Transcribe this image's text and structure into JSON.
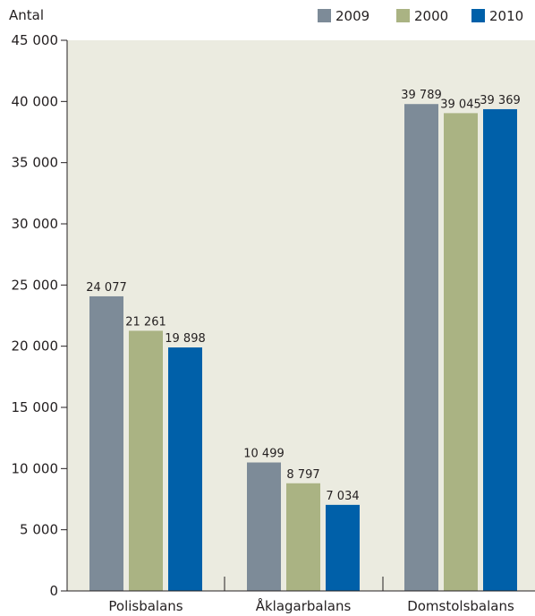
{
  "chart_data": {
    "type": "bar",
    "title": "",
    "xlabel": "",
    "ylabel": "Antal",
    "ylim": [
      0,
      45000
    ],
    "yticks": [
      0,
      5000,
      10000,
      15000,
      20000,
      25000,
      30000,
      35000,
      40000,
      45000
    ],
    "ytick_labels": [
      "0",
      "5 000",
      "10 000",
      "15 000",
      "20 000",
      "25 000",
      "30 000",
      "35 000",
      "40 000",
      "45 000"
    ],
    "categories": [
      "Polisbalans",
      "Åklagarbalans",
      "Domstolsbalans"
    ],
    "series": [
      {
        "name": "2009",
        "color": "#7d8b98",
        "values": [
          24077,
          10499,
          39789
        ],
        "labels": [
          "24 077",
          "10 499",
          "39 789"
        ]
      },
      {
        "name": "2000",
        "color": "#aab383",
        "values": [
          21261,
          8797,
          39045
        ],
        "labels": [
          "21 261",
          "8 797",
          "39 045"
        ]
      },
      {
        "name": "2010",
        "color": "#0060a9",
        "values": [
          19898,
          7034,
          39369
        ],
        "labels": [
          "19 898",
          "7 034",
          "39 369"
        ]
      }
    ],
    "plot_background": "#ebebe0",
    "grid": false,
    "legend_position": "top-right"
  }
}
